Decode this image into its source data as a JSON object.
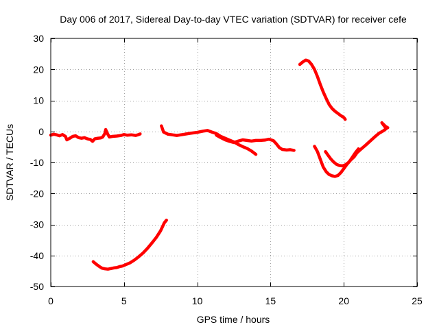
{
  "chart_data": {
    "type": "line",
    "title": "Day 006 of 2017, Sidereal Day-to-day VTEC variation (SDTVAR) for receiver cefe",
    "xlabel": "GPS time / hours",
    "ylabel": "SDTVAR / TECUs",
    "xlim": [
      0,
      25
    ],
    "ylim": [
      -50,
      30
    ],
    "xticks": [
      0,
      5,
      10,
      15,
      20,
      25
    ],
    "yticks": [
      -50,
      -40,
      -30,
      -20,
      -10,
      0,
      10,
      20,
      30
    ],
    "grid": true,
    "legend": "none",
    "color": "#ff0000",
    "series": [
      {
        "name": "segment-1",
        "points": [
          [
            0.0,
            -1.2
          ],
          [
            0.2,
            -0.9
          ],
          [
            0.4,
            -1.1
          ],
          [
            0.6,
            -1.4
          ],
          [
            0.8,
            -1.0
          ],
          [
            1.0,
            -1.6
          ],
          [
            1.1,
            -2.7
          ],
          [
            1.3,
            -2.2
          ],
          [
            1.5,
            -1.6
          ],
          [
            1.7,
            -1.4
          ],
          [
            1.9,
            -2.0
          ],
          [
            2.1,
            -2.2
          ],
          [
            2.3,
            -2.0
          ],
          [
            2.5,
            -2.4
          ],
          [
            2.7,
            -2.6
          ],
          [
            2.85,
            -3.2
          ],
          [
            3.0,
            -2.4
          ],
          [
            3.2,
            -2.2
          ],
          [
            3.4,
            -2.1
          ],
          [
            3.55,
            -1.8
          ],
          [
            3.7,
            -0.6
          ],
          [
            3.75,
            0.6
          ],
          [
            3.85,
            -0.5
          ],
          [
            4.0,
            -1.8
          ],
          [
            4.2,
            -1.6
          ],
          [
            4.5,
            -1.5
          ],
          [
            4.8,
            -1.3
          ],
          [
            5.0,
            -1.0
          ],
          [
            5.2,
            -1.2
          ],
          [
            5.5,
            -1.1
          ],
          [
            5.8,
            -1.3
          ],
          [
            6.0,
            -1.0
          ],
          [
            6.1,
            -0.8
          ]
        ]
      },
      {
        "name": "segment-2",
        "points": [
          [
            7.55,
            1.8
          ],
          [
            7.7,
            -0.2
          ],
          [
            8.0,
            -0.9
          ],
          [
            8.3,
            -1.1
          ],
          [
            8.6,
            -1.3
          ],
          [
            9.0,
            -1.0
          ],
          [
            9.5,
            -0.6
          ],
          [
            10.0,
            -0.3
          ],
          [
            10.4,
            0.1
          ],
          [
            10.7,
            0.3
          ],
          [
            11.0,
            -0.2
          ],
          [
            11.3,
            -0.7
          ],
          [
            11.6,
            -1.6
          ],
          [
            11.9,
            -2.2
          ],
          [
            12.2,
            -2.8
          ],
          [
            12.5,
            -3.4
          ],
          [
            12.8,
            -4.2
          ],
          [
            13.1,
            -4.9
          ],
          [
            13.4,
            -5.5
          ],
          [
            13.7,
            -6.3
          ],
          [
            14.0,
            -7.4
          ]
        ]
      },
      {
        "name": "segment-3",
        "points": [
          [
            11.3,
            -1.2
          ],
          [
            11.6,
            -2.0
          ],
          [
            11.9,
            -2.7
          ],
          [
            12.2,
            -3.2
          ],
          [
            12.5,
            -3.6
          ],
          [
            12.8,
            -3.1
          ],
          [
            13.1,
            -2.7
          ],
          [
            13.4,
            -2.9
          ],
          [
            13.7,
            -3.1
          ],
          [
            14.0,
            -2.9
          ],
          [
            14.3,
            -2.9
          ],
          [
            14.6,
            -2.8
          ],
          [
            14.9,
            -2.5
          ],
          [
            15.2,
            -3.0
          ],
          [
            15.4,
            -4.0
          ],
          [
            15.6,
            -5.2
          ],
          [
            15.8,
            -5.8
          ],
          [
            16.1,
            -6.0
          ],
          [
            16.35,
            -5.9
          ],
          [
            16.6,
            -6.1
          ]
        ]
      },
      {
        "name": "segment-4",
        "points": [
          [
            17.0,
            21.6
          ],
          [
            17.2,
            22.4
          ],
          [
            17.4,
            23.0
          ],
          [
            17.6,
            22.7
          ],
          [
            17.8,
            21.6
          ],
          [
            18.0,
            20.0
          ],
          [
            18.2,
            17.7
          ],
          [
            18.4,
            15.1
          ],
          [
            18.6,
            12.7
          ],
          [
            18.8,
            10.6
          ],
          [
            19.0,
            8.7
          ],
          [
            19.2,
            7.4
          ],
          [
            19.4,
            6.5
          ],
          [
            19.6,
            5.8
          ],
          [
            19.8,
            5.1
          ],
          [
            20.0,
            4.5
          ],
          [
            20.1,
            3.9
          ]
        ]
      },
      {
        "name": "segment-5",
        "points": [
          [
            18.0,
            -4.8
          ],
          [
            18.2,
            -6.5
          ],
          [
            18.4,
            -9.0
          ],
          [
            18.6,
            -11.5
          ],
          [
            18.8,
            -13.0
          ],
          [
            19.0,
            -13.9
          ],
          [
            19.2,
            -14.3
          ],
          [
            19.4,
            -14.5
          ],
          [
            19.6,
            -14.2
          ],
          [
            19.8,
            -13.3
          ],
          [
            20.0,
            -12.0
          ],
          [
            20.2,
            -10.7
          ],
          [
            20.4,
            -9.6
          ],
          [
            20.6,
            -8.2
          ],
          [
            20.8,
            -6.8
          ],
          [
            21.0,
            -5.6
          ]
        ]
      },
      {
        "name": "segment-6",
        "points": [
          [
            18.75,
            -6.5
          ],
          [
            18.9,
            -7.5
          ],
          [
            19.1,
            -8.8
          ],
          [
            19.3,
            -9.8
          ],
          [
            19.5,
            -10.6
          ],
          [
            19.7,
            -11.0
          ],
          [
            19.9,
            -11.1
          ],
          [
            20.1,
            -10.8
          ],
          [
            20.3,
            -10.1
          ],
          [
            20.5,
            -9.1
          ],
          [
            20.7,
            -8.2
          ],
          [
            20.9,
            -6.9
          ],
          [
            21.2,
            -5.6
          ],
          [
            21.5,
            -4.4
          ],
          [
            21.8,
            -3.1
          ],
          [
            22.1,
            -1.8
          ],
          [
            22.4,
            -0.6
          ],
          [
            22.7,
            0.2
          ],
          [
            22.9,
            0.9
          ],
          [
            22.6,
            2.8
          ],
          [
            22.85,
            1.6
          ],
          [
            23.0,
            1.2
          ]
        ]
      },
      {
        "name": "segment-7",
        "points": [
          [
            2.9,
            -42.0
          ],
          [
            3.1,
            -42.8
          ],
          [
            3.3,
            -43.5
          ],
          [
            3.5,
            -44.1
          ],
          [
            3.7,
            -44.3
          ],
          [
            3.9,
            -44.4
          ],
          [
            4.1,
            -44.2
          ],
          [
            4.3,
            -44.0
          ],
          [
            4.5,
            -43.9
          ],
          [
            4.7,
            -43.6
          ],
          [
            4.9,
            -43.4
          ],
          [
            5.1,
            -43.0
          ],
          [
            5.4,
            -42.4
          ],
          [
            5.7,
            -41.5
          ],
          [
            6.0,
            -40.4
          ],
          [
            6.3,
            -39.2
          ],
          [
            6.6,
            -37.7
          ],
          [
            6.9,
            -36.0
          ],
          [
            7.2,
            -34.2
          ],
          [
            7.5,
            -32.0
          ],
          [
            7.75,
            -29.5
          ],
          [
            7.9,
            -28.6
          ]
        ]
      }
    ]
  }
}
